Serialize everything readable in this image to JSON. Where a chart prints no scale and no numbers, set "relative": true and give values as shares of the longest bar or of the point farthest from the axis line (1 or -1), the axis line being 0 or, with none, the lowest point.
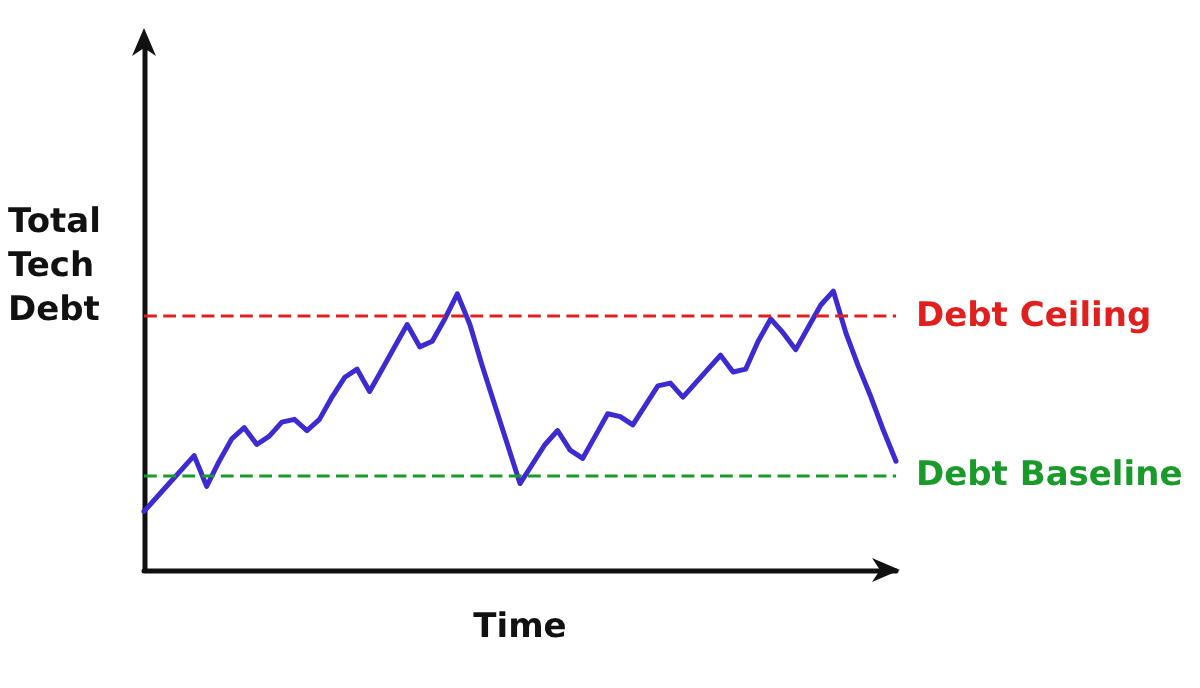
{
  "chart_data": {
    "type": "line",
    "relative": true,
    "xlabel": "Time",
    "ylabel": "Total\nTech\nDebt",
    "categories": [
      null,
      null,
      null,
      null,
      null,
      null,
      null,
      null,
      null,
      null,
      null,
      null,
      null,
      null,
      null,
      null,
      null,
      null,
      null,
      null,
      null,
      null,
      null,
      null,
      null,
      null,
      null,
      null,
      null,
      null,
      null,
      null,
      null,
      null,
      null,
      null,
      null,
      null,
      null,
      null,
      null,
      null,
      null,
      null,
      null,
      null,
      null,
      null,
      null,
      null,
      null,
      null,
      null,
      null,
      null,
      null,
      null,
      null,
      null,
      null,
      null
    ],
    "series": [
      {
        "color": "#3b2bd1",
        "values": [
          0.21,
          0.26,
          0.31,
          0.36,
          0.41,
          0.3,
          0.39,
          0.47,
          0.51,
          0.45,
          0.48,
          0.53,
          0.54,
          0.5,
          0.54,
          0.62,
          0.69,
          0.72,
          0.64,
          0.72,
          0.8,
          0.88,
          0.8,
          0.82,
          0.9,
          0.99,
          0.88,
          0.73,
          0.59,
          0.45,
          0.31,
          0.38,
          0.45,
          0.5,
          0.43,
          0.4,
          0.48,
          0.56,
          0.55,
          0.52,
          0.59,
          0.66,
          0.67,
          0.62,
          0.67,
          0.72,
          0.77,
          0.71,
          0.72,
          0.82,
          0.9,
          0.85,
          0.79,
          0.87,
          0.95,
          1.0,
          0.85,
          0.73,
          0.62,
          0.5,
          0.39
        ]
      }
    ],
    "tick_labels": false,
    "grid": false,
    "line_style": "solid",
    "ref_lines": [
      {
        "axis": "y",
        "value": 0.91,
        "label": "Debt Ceiling",
        "color": "#e0201f",
        "line_style": "dashed"
      },
      {
        "axis": "y",
        "value": 0.34,
        "label": "Debt Baseline",
        "color": "#1a9a2a",
        "line_style": "dashed"
      }
    ]
  }
}
